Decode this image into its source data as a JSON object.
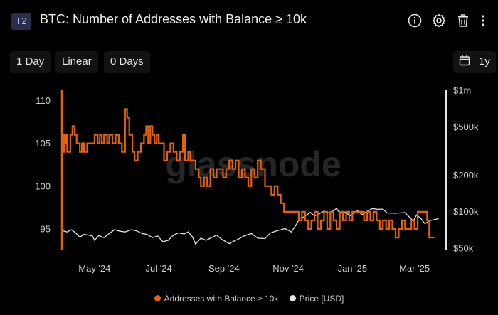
{
  "header": {
    "badge": "T2",
    "title": "BTC: Number of Addresses with Balance ≥ 10k",
    "icons": [
      "info-icon",
      "gear-icon",
      "trash-icon",
      "more-vertical-icon"
    ]
  },
  "toolbar": {
    "resolution": "1 Day",
    "scale": "Linear",
    "ma": "0 Days",
    "range": "1y",
    "calendar_icon": "calendar-icon"
  },
  "watermark": "glassnode",
  "colors": {
    "addresses": "#e3620e",
    "price": "#e6e6e6",
    "background": "#000000",
    "axis_text": "#cfcfcf"
  },
  "chart_data": {
    "type": "line",
    "title": "BTC: Number of Addresses with Balance ≥ 10k",
    "x_ticks": [
      "May '24",
      "Jul '24",
      "Sep '24",
      "Nov '24",
      "Jan '25",
      "Mar '25"
    ],
    "x_tick_dates": [
      "2024-05-01",
      "2024-07-01",
      "2024-09-01",
      "2024-11-01",
      "2025-01-01",
      "2025-03-01"
    ],
    "xlim": [
      "2024-03-31",
      "2025-03-31"
    ],
    "y_left": {
      "ylim": [
        92.5,
        111.2
      ],
      "ticks": [
        95,
        100,
        105,
        110
      ],
      "tick_labels": [
        "95",
        "100",
        "105",
        "110"
      ]
    },
    "y_right": {
      "scale": "log",
      "ylim": [
        48000,
        1000000
      ],
      "ticks": [
        50000,
        100000,
        200000,
        500000,
        1000000
      ],
      "tick_labels": [
        "$50k",
        "$100k",
        "$200k",
        "$500k",
        "$1m"
      ]
    },
    "grid": false,
    "legend_position": "bottom-center",
    "series": [
      {
        "name": "Addresses with Balance ≥ 10k",
        "axis": "left",
        "color": "#e3620e",
        "points": [
          [
            "2024-04-01",
            104
          ],
          [
            "2024-04-02",
            106
          ],
          [
            "2024-04-03",
            105
          ],
          [
            "2024-04-04",
            106
          ],
          [
            "2024-04-05",
            104
          ],
          [
            "2024-04-08",
            106
          ],
          [
            "2024-04-10",
            107
          ],
          [
            "2024-04-12",
            106
          ],
          [
            "2024-04-14",
            105
          ],
          [
            "2024-04-17",
            104
          ],
          [
            "2024-04-19",
            105
          ],
          [
            "2024-04-21",
            104
          ],
          [
            "2024-04-24",
            105
          ],
          [
            "2024-04-28",
            105
          ],
          [
            "2024-05-01",
            106
          ],
          [
            "2024-05-04",
            105
          ],
          [
            "2024-05-06",
            106
          ],
          [
            "2024-05-08",
            105
          ],
          [
            "2024-05-10",
            106
          ],
          [
            "2024-05-13",
            105
          ],
          [
            "2024-05-15",
            106
          ],
          [
            "2024-05-18",
            105
          ],
          [
            "2024-05-21",
            106
          ],
          [
            "2024-05-24",
            105
          ],
          [
            "2024-05-27",
            104
          ],
          [
            "2024-05-30",
            109
          ],
          [
            "2024-06-01",
            108
          ],
          [
            "2024-06-03",
            106
          ],
          [
            "2024-06-06",
            104
          ],
          [
            "2024-06-08",
            103
          ],
          [
            "2024-06-11",
            104
          ],
          [
            "2024-06-14",
            105
          ],
          [
            "2024-06-17",
            106
          ],
          [
            "2024-06-19",
            107
          ],
          [
            "2024-06-21",
            105
          ],
          [
            "2024-06-23",
            107
          ],
          [
            "2024-06-25",
            106
          ],
          [
            "2024-06-27",
            105
          ],
          [
            "2024-06-29",
            106
          ],
          [
            "2024-07-01",
            105
          ],
          [
            "2024-07-04",
            105
          ],
          [
            "2024-07-06",
            103
          ],
          [
            "2024-07-09",
            104
          ],
          [
            "2024-07-12",
            105
          ],
          [
            "2024-07-15",
            104
          ],
          [
            "2024-07-18",
            103
          ],
          [
            "2024-07-21",
            104
          ],
          [
            "2024-07-24",
            106
          ],
          [
            "2024-07-26",
            103
          ],
          [
            "2024-07-29",
            104
          ],
          [
            "2024-07-31",
            103
          ],
          [
            "2024-08-03",
            103
          ],
          [
            "2024-08-05",
            102
          ],
          [
            "2024-08-08",
            101
          ],
          [
            "2024-08-10",
            100
          ],
          [
            "2024-08-13",
            101
          ],
          [
            "2024-08-16",
            100
          ],
          [
            "2024-08-19",
            102
          ],
          [
            "2024-08-22",
            101
          ],
          [
            "2024-08-25",
            102
          ],
          [
            "2024-08-28",
            102
          ],
          [
            "2024-08-31",
            101
          ],
          [
            "2024-09-03",
            102
          ],
          [
            "2024-09-06",
            103
          ],
          [
            "2024-09-09",
            102
          ],
          [
            "2024-09-12",
            103
          ],
          [
            "2024-09-15",
            101
          ],
          [
            "2024-09-18",
            102
          ],
          [
            "2024-09-21",
            101
          ],
          [
            "2024-09-24",
            100
          ],
          [
            "2024-09-27",
            102
          ],
          [
            "2024-09-30",
            101
          ],
          [
            "2024-10-03",
            103
          ],
          [
            "2024-10-06",
            102
          ],
          [
            "2024-10-10",
            100
          ],
          [
            "2024-10-14",
            100
          ],
          [
            "2024-10-16",
            99
          ],
          [
            "2024-10-19",
            100
          ],
          [
            "2024-10-22",
            99
          ],
          [
            "2024-10-25",
            98
          ],
          [
            "2024-10-28",
            97
          ],
          [
            "2024-11-03",
            97
          ],
          [
            "2024-11-05",
            97
          ],
          [
            "2024-11-08",
            97
          ],
          [
            "2024-11-11",
            96
          ],
          [
            "2024-11-14",
            97
          ],
          [
            "2024-11-17",
            96
          ],
          [
            "2024-11-20",
            95
          ],
          [
            "2024-11-23",
            96
          ],
          [
            "2024-11-26",
            97
          ],
          [
            "2024-11-29",
            95
          ],
          [
            "2024-12-02",
            96
          ],
          [
            "2024-12-05",
            97
          ],
          [
            "2024-12-08",
            95
          ],
          [
            "2024-12-11",
            97
          ],
          [
            "2024-12-14",
            96
          ],
          [
            "2024-12-17",
            95
          ],
          [
            "2024-12-20",
            97
          ],
          [
            "2024-12-23",
            96
          ],
          [
            "2024-12-26",
            97
          ],
          [
            "2024-12-29",
            96
          ],
          [
            "2025-01-01",
            97
          ],
          [
            "2025-01-05",
            97
          ],
          [
            "2025-01-09",
            97
          ],
          [
            "2025-01-12",
            96
          ],
          [
            "2025-01-15",
            97
          ],
          [
            "2025-01-18",
            96
          ],
          [
            "2025-01-21",
            97
          ],
          [
            "2025-01-24",
            96
          ],
          [
            "2025-01-27",
            95
          ],
          [
            "2025-01-30",
            96
          ],
          [
            "2025-02-02",
            95
          ],
          [
            "2025-02-05",
            96
          ],
          [
            "2025-02-08",
            95
          ],
          [
            "2025-02-11",
            94
          ],
          [
            "2025-02-14",
            95
          ],
          [
            "2025-02-17",
            96
          ],
          [
            "2025-02-20",
            95
          ],
          [
            "2025-02-23",
            95
          ],
          [
            "2025-02-26",
            96
          ],
          [
            "2025-03-01",
            95
          ],
          [
            "2025-03-04",
            97
          ],
          [
            "2025-03-07",
            97
          ],
          [
            "2025-03-10",
            97
          ],
          [
            "2025-03-13",
            96
          ],
          [
            "2025-03-15",
            94
          ],
          [
            "2025-03-20",
            94
          ]
        ]
      },
      {
        "name": "Price [USD]",
        "axis": "right",
        "color": "#e6e6e6",
        "points": [
          [
            "2024-04-01",
            69500
          ],
          [
            "2024-04-05",
            68000
          ],
          [
            "2024-04-09",
            71000
          ],
          [
            "2024-04-13",
            67000
          ],
          [
            "2024-04-17",
            61500
          ],
          [
            "2024-04-21",
            64900
          ],
          [
            "2024-04-25",
            64200
          ],
          [
            "2024-04-29",
            63000
          ],
          [
            "2024-05-01",
            58000
          ],
          [
            "2024-05-05",
            63500
          ],
          [
            "2024-05-10",
            61000
          ],
          [
            "2024-05-15",
            66000
          ],
          [
            "2024-05-20",
            71000
          ],
          [
            "2024-05-25",
            69000
          ],
          [
            "2024-05-30",
            68000
          ],
          [
            "2024-06-05",
            71000
          ],
          [
            "2024-06-10",
            69500
          ],
          [
            "2024-06-15",
            66000
          ],
          [
            "2024-06-20",
            64900
          ],
          [
            "2024-06-25",
            61000
          ],
          [
            "2024-06-30",
            63000
          ],
          [
            "2024-07-05",
            56500
          ],
          [
            "2024-07-10",
            58000
          ],
          [
            "2024-07-15",
            64000
          ],
          [
            "2024-07-20",
            67000
          ],
          [
            "2024-07-25",
            65500
          ],
          [
            "2024-07-29",
            68000
          ],
          [
            "2024-08-02",
            62000
          ],
          [
            "2024-08-05",
            54000
          ],
          [
            "2024-08-10",
            60500
          ],
          [
            "2024-08-15",
            58000
          ],
          [
            "2024-08-20",
            61000
          ],
          [
            "2024-08-25",
            64000
          ],
          [
            "2024-08-30",
            59000
          ],
          [
            "2024-09-06",
            54500
          ],
          [
            "2024-09-10",
            57000
          ],
          [
            "2024-09-15",
            59500
          ],
          [
            "2024-09-20",
            63000
          ],
          [
            "2024-09-27",
            66000
          ],
          [
            "2024-10-03",
            60500
          ],
          [
            "2024-10-10",
            60000
          ],
          [
            "2024-10-15",
            66500
          ],
          [
            "2024-10-20",
            69000
          ],
          [
            "2024-10-29",
            72500
          ],
          [
            "2024-11-04",
            68000
          ],
          [
            "2024-11-08",
            76500
          ],
          [
            "2024-11-12",
            88000
          ],
          [
            "2024-11-16",
            90500
          ],
          [
            "2024-11-22",
            98500
          ],
          [
            "2024-11-26",
            92000
          ],
          [
            "2024-12-01",
            96500
          ],
          [
            "2024-12-05",
            101000
          ],
          [
            "2024-12-10",
            97000
          ],
          [
            "2024-12-17",
            106000
          ],
          [
            "2024-12-20",
            97000
          ],
          [
            "2024-12-25",
            99000
          ],
          [
            "2024-12-30",
            92500
          ],
          [
            "2025-01-06",
            102000
          ],
          [
            "2025-01-10",
            94500
          ],
          [
            "2025-01-15",
            100500
          ],
          [
            "2025-01-20",
            106000
          ],
          [
            "2025-01-25",
            104500
          ],
          [
            "2025-01-30",
            105000
          ],
          [
            "2025-02-03",
            97500
          ],
          [
            "2025-02-10",
            97000
          ],
          [
            "2025-02-15",
            97500
          ],
          [
            "2025-02-20",
            98000
          ],
          [
            "2025-02-25",
            88500
          ],
          [
            "2025-02-28",
            84000
          ],
          [
            "2025-03-03",
            94000
          ],
          [
            "2025-03-07",
            88000
          ],
          [
            "2025-03-11",
            79500
          ],
          [
            "2025-03-15",
            84000
          ],
          [
            "2025-03-20",
            86000
          ],
          [
            "2025-03-24",
            87500
          ]
        ]
      }
    ]
  },
  "legend": {
    "items": [
      {
        "label": "Addresses with Balance ≥ 10k",
        "color": "#e3620e"
      },
      {
        "label": "Price [USD]",
        "color": "#e6e6e6"
      }
    ]
  }
}
